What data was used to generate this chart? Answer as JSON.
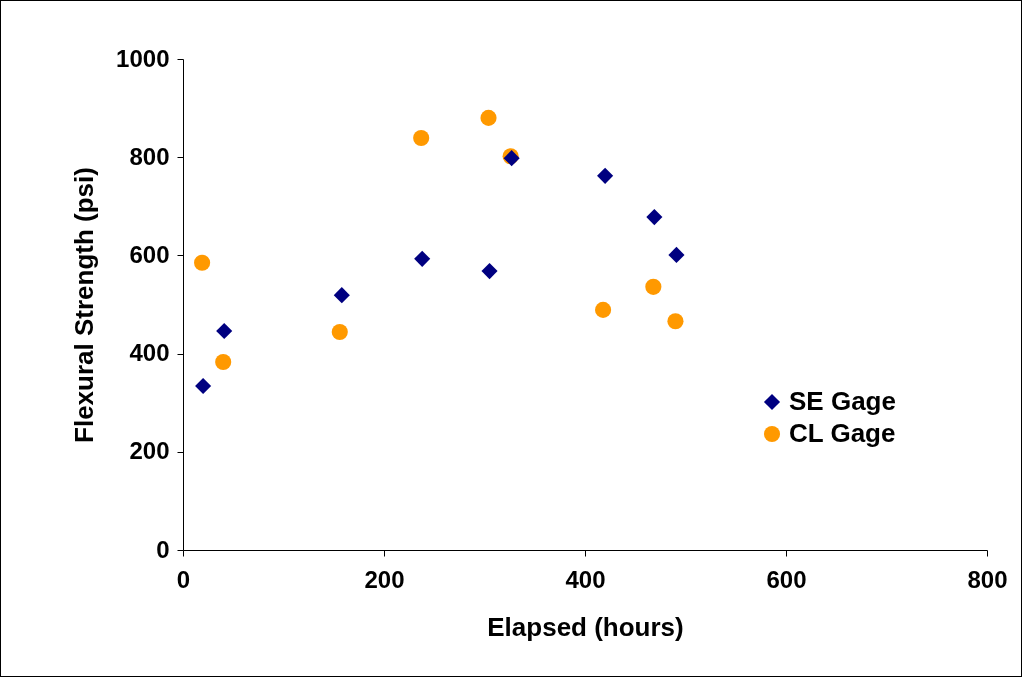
{
  "chart_data": {
    "type": "scatter",
    "xlabel": "Elapsed (hours)",
    "ylabel": "Flexural Strength (psi)",
    "xlim": [
      0,
      800
    ],
    "xticks": [
      0,
      200,
      400,
      600,
      800
    ],
    "ylim": [
      0,
      1000
    ],
    "yticks": [
      0,
      200,
      400,
      600,
      800,
      1000
    ],
    "grid": false,
    "legend": "right",
    "series": [
      {
        "name": "SE Gage",
        "color": "#000080",
        "marker": "diamond",
        "x": [
          20,
          41,
          158,
          238,
          305,
          327,
          420,
          469,
          491
        ],
        "values": [
          334,
          446,
          519,
          593,
          568,
          798,
          762,
          678,
          601
        ]
      },
      {
        "name": "CL Gage",
        "color": "#ff9900",
        "marker": "circle",
        "x": [
          19,
          40,
          156,
          237,
          304,
          326,
          418,
          468,
          490
        ],
        "values": [
          585,
          383,
          444,
          839,
          880,
          802,
          489,
          536,
          466
        ]
      }
    ]
  }
}
